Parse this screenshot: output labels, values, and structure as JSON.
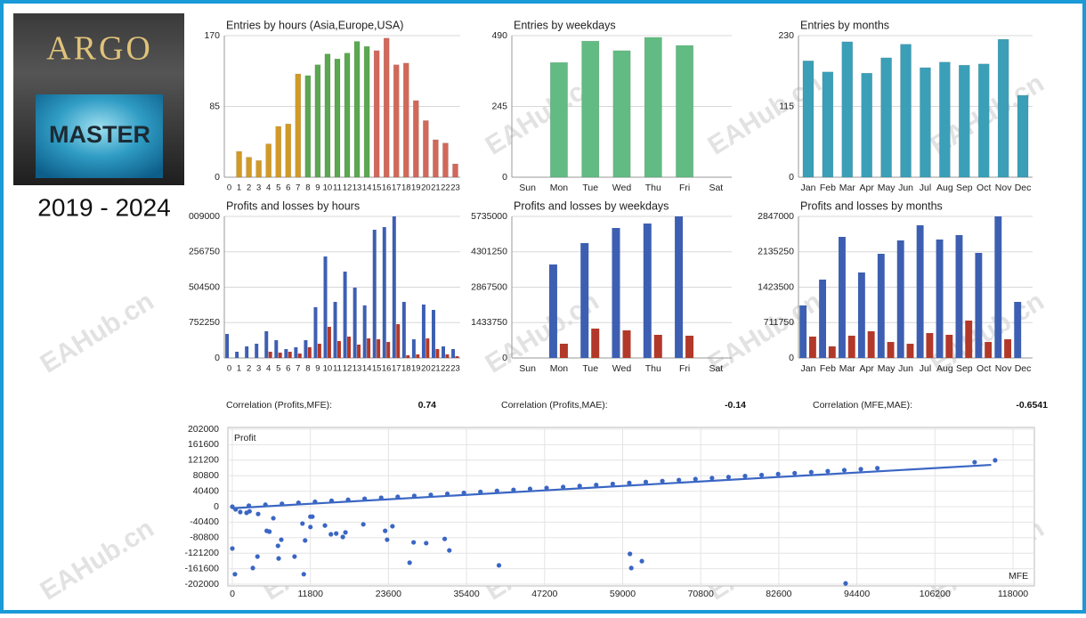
{
  "header": {
    "logo_top": "ARGO",
    "logo_bottom": "MASTER",
    "period": "2019 - 2024"
  },
  "watermark": "EAHub.cn",
  "correlations": [
    {
      "label": "Correlation (Profits,MFE):",
      "value": 0.74
    },
    {
      "label": "Correlation (Profits,MAE):",
      "value": -0.14
    },
    {
      "label": "Correlation (MFE,MAE):",
      "value": -0.6541
    }
  ],
  "chart_data": [
    {
      "type": "bar",
      "title": "Entries by hours (Asia,Europe,USA)",
      "categories": [
        "0",
        "1",
        "2",
        "3",
        "4",
        "5",
        "6",
        "7",
        "8",
        "9",
        "10",
        "11",
        "12",
        "13",
        "14",
        "15",
        "16",
        "17",
        "18",
        "19",
        "20",
        "21",
        "22",
        "23"
      ],
      "values": [
        0,
        31,
        24,
        20,
        40,
        61,
        64,
        124,
        122,
        135,
        148,
        142,
        149,
        163,
        157,
        152,
        167,
        135,
        137,
        92,
        68,
        45,
        41,
        16
      ],
      "colors": [
        "#d19a28",
        "#d19a28",
        "#d19a28",
        "#d19a28",
        "#d19a28",
        "#d19a28",
        "#d19a28",
        "#d19a28",
        "#5aa84f",
        "#5aa84f",
        "#5aa84f",
        "#5aa84f",
        "#5aa84f",
        "#5aa84f",
        "#5aa84f",
        "#d1685a",
        "#d1685a",
        "#d1685a",
        "#d1685a",
        "#d1685a",
        "#d1685a",
        "#d1685a",
        "#d1685a",
        "#d1685a"
      ],
      "ylim": [
        0,
        170
      ],
      "yticks": [
        0,
        85,
        170
      ],
      "grid": true
    },
    {
      "type": "bar",
      "title": "Entries by weekdays",
      "categories": [
        "Sun",
        "Mon",
        "Tue",
        "Wed",
        "Thu",
        "Fri",
        "Sat"
      ],
      "values": [
        0,
        397,
        471,
        438,
        484,
        456,
        0
      ],
      "color": "#62bb82",
      "ylim": [
        0,
        490
      ],
      "yticks": [
        0,
        245,
        490
      ],
      "grid": true
    },
    {
      "type": "bar",
      "title": "Entries by months",
      "categories": [
        "Jan",
        "Feb",
        "Mar",
        "Apr",
        "May",
        "Jun",
        "Jul",
        "Aug",
        "Sep",
        "Oct",
        "Nov",
        "Dec"
      ],
      "values": [
        189,
        171,
        220,
        169,
        194,
        216,
        178,
        187,
        182,
        184,
        224,
        133
      ],
      "color": "#3b9fb8",
      "ylim": [
        0,
        230
      ],
      "yticks": [
        0,
        115,
        230
      ],
      "grid": true
    },
    {
      "type": "bar",
      "title": "Profits and losses by hours",
      "categories": [
        "0",
        "1",
        "2",
        "3",
        "4",
        "5",
        "6",
        "7",
        "8",
        "9",
        "10",
        "11",
        "12",
        "13",
        "14",
        "15",
        "16",
        "17",
        "18",
        "19",
        "20",
        "21",
        "22",
        "23"
      ],
      "series": [
        {
          "color": "#3d5fb2",
          "values": [
            511000,
            132000,
            246000,
            303000,
            568000,
            378000,
            189000,
            227000,
            378000,
            1079000,
            2157000,
            1192000,
            1836000,
            1495000,
            1117000,
            2725000,
            2782000,
            3009000,
            1192000,
            397000,
            1136000,
            1022000,
            246000,
            189000
          ]
        },
        {
          "color": "#b2382a",
          "values": [
            0,
            0,
            0,
            0,
            132000,
            114000,
            132000,
            95000,
            227000,
            303000,
            662000,
            360000,
            454000,
            284000,
            416000,
            397000,
            341000,
            719000,
            57000,
            76000,
            416000,
            189000,
            76000,
            38000
          ]
        }
      ],
      "ylim": [
        0,
        3009000
      ],
      "yticks": [
        0,
        {
          "value": 752250,
          "label": "752250"
        },
        {
          "value": 1504500,
          "label": "504500"
        },
        {
          "value": 2256750,
          "label": "256750"
        },
        {
          "value": 3009000,
          "label": "009000"
        }
      ],
      "grid": true
    },
    {
      "type": "bar",
      "title": "Profits and losses by weekdays",
      "categories": [
        "Sun",
        "Mon",
        "Tue",
        "Wed",
        "Thu",
        "Fri",
        "Sat"
      ],
      "series": [
        {
          "color": "#3d5fb2",
          "values": [
            0,
            3787000,
            4653000,
            5266000,
            5446000,
            5735000,
            0
          ]
        },
        {
          "color": "#b2382a",
          "values": [
            0,
            577000,
            1190000,
            1118000,
            938000,
            902000,
            0
          ]
        }
      ],
      "ylim": [
        0,
        5735000
      ],
      "yticks": [
        0,
        1433750,
        2867500,
        4301250,
        5735000
      ],
      "grid": true
    },
    {
      "type": "bar",
      "title": "Profits and losses by months",
      "categories": [
        "Jan",
        "Feb",
        "Mar",
        "Apr",
        "May",
        "Jun",
        "Jul",
        "Aug",
        "Sep",
        "Oct",
        "Nov",
        "Dec"
      ],
      "series": [
        {
          "color": "#3d5fb2",
          "values": [
            1056000,
            1576000,
            2435000,
            1719000,
            2095000,
            2364000,
            2668000,
            2382000,
            2471000,
            2113000,
            2847000,
            1128000
          ]
        },
        {
          "color": "#b2382a",
          "values": [
            430000,
            233000,
            448000,
            537000,
            322000,
            286000,
            501000,
            466000,
            752000,
            322000,
            376000,
            0
          ]
        }
      ],
      "ylim": [
        0,
        2847000
      ],
      "yticks": [
        0,
        711750,
        1423500,
        2135250,
        2847000
      ],
      "grid": true
    },
    {
      "type": "scatter",
      "xlabel": "MFE",
      "ylabel": "Profit",
      "color": "#3a66c4",
      "x": [
        0,
        2500,
        5000,
        7500,
        10000,
        12500,
        15000,
        17500,
        20000,
        22500,
        25000,
        27500,
        30000,
        32500,
        35000,
        37500,
        40000,
        42500,
        45000,
        47500,
        50000,
        52500,
        55000,
        57500,
        60000,
        62500,
        65000,
        67500,
        70000,
        72500,
        75000,
        77500,
        80000,
        82500,
        85000,
        87500,
        90000,
        92500,
        95000,
        97500,
        112200,
        115300,
        0,
        400,
        2150,
        3800,
        3100,
        5200,
        5600,
        6200,
        6900,
        7400,
        7000,
        9400,
        10600,
        10800,
        11000,
        11800,
        12100,
        11800,
        14000,
        14900,
        15700,
        16700,
        17100,
        19800,
        23100,
        23400,
        24200,
        26800,
        27400,
        29300,
        32100,
        32800,
        40300,
        60100,
        60300,
        61900,
        92700,
        500,
        1200,
        2600,
        3900
      ],
      "y": [
        0,
        2575,
        5150,
        7725,
        10300,
        12875,
        15450,
        18025,
        20600,
        23175,
        25750,
        28325,
        30900,
        33475,
        36050,
        38625,
        41200,
        43775,
        46350,
        48925,
        51500,
        54075,
        56650,
        59225,
        61800,
        64375,
        66950,
        69525,
        72100,
        74675,
        77250,
        79825,
        82400,
        84975,
        87550,
        90125,
        92700,
        95275,
        97850,
        100425,
        116000,
        121000,
        -109000,
        -176000,
        -16000,
        -130000,
        -160000,
        -63000,
        -65000,
        -30000,
        -102000,
        -86000,
        -135000,
        -130000,
        -44000,
        -176000,
        -88000,
        -26000,
        -26000,
        -53000,
        -49000,
        -72000,
        -70000,
        -79000,
        -67000,
        -46000,
        -63000,
        -86000,
        -51000,
        -146000,
        -93000,
        -95000,
        -84000,
        -114000,
        -153000,
        -123000,
        -160000,
        -142000,
        -200000,
        -7000,
        -14000,
        -12000,
        -19000
      ],
      "trendline": {
        "x": [
          0,
          114700
        ],
        "y": [
          -4000,
          109000
        ]
      },
      "xlim": [
        0,
        118000
      ],
      "xticks": [
        0,
        11800,
        23600,
        35400,
        47200,
        59000,
        70800,
        82600,
        94400,
        106200,
        118000
      ],
      "ylim": [
        -202000,
        202000
      ],
      "yticks": [
        202000,
        161600,
        121200,
        80800,
        40400,
        0,
        -40400,
        -80800,
        -121200,
        -161600,
        -202000
      ],
      "grid": true
    }
  ]
}
